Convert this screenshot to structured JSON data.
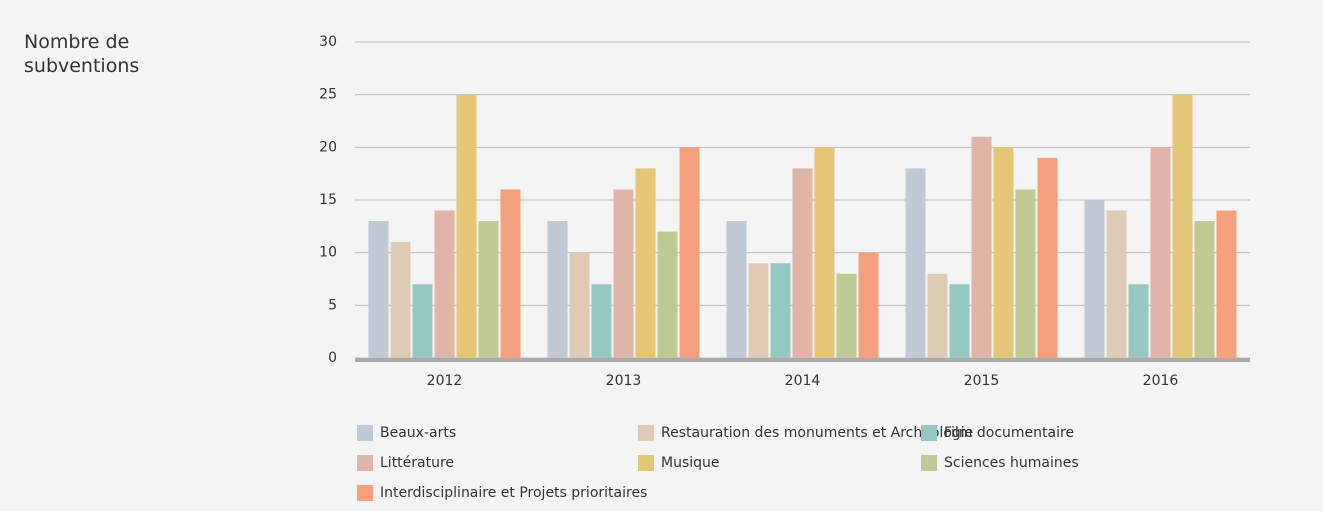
{
  "chart_data": {
    "type": "bar",
    "ylabel": "Nombre de subventions",
    "categories": [
      "2012",
      "2013",
      "2014",
      "2015",
      "2016"
    ],
    "series": [
      {
        "name": "Beaux-arts",
        "color": "#bfcad6",
        "values": [
          13,
          13,
          13,
          18,
          15
        ]
      },
      {
        "name": "Restauration des monuments et Archéologie",
        "color": "#dfcbb4",
        "values": [
          11,
          10,
          9,
          8,
          14
        ]
      },
      {
        "name": "Film documentaire",
        "color": "#95c7c3",
        "values": [
          7,
          7,
          9,
          7,
          7
        ]
      },
      {
        "name": "Littérature",
        "color": "#e0b4a6",
        "values": [
          14,
          16,
          18,
          21,
          20
        ]
      },
      {
        "name": "Musique",
        "color": "#e5c677",
        "values": [
          25,
          18,
          20,
          20,
          25
        ]
      },
      {
        "name": "Sciences humaines",
        "color": "#bec993",
        "values": [
          13,
          12,
          8,
          16,
          13
        ]
      },
      {
        "name": "Interdisciplinaire et Projets prioritaires",
        "color": "#f5a07c",
        "values": [
          16,
          20,
          10,
          19,
          14
        ]
      }
    ],
    "ylim": [
      0,
      30
    ],
    "yticks": [
      0,
      5,
      10,
      15,
      20,
      25,
      30
    ],
    "grid": true
  }
}
